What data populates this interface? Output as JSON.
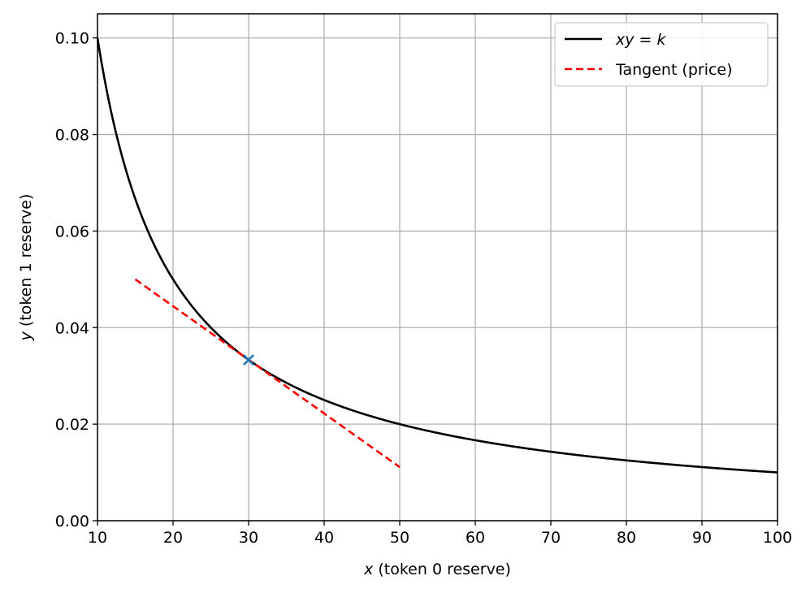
{
  "chart_data": {
    "type": "line",
    "xlabel_var": "x",
    "xlabel_rest": " (token 0 reserve)",
    "ylabel_var": "y",
    "ylabel_rest": " (token 1 reserve)",
    "xlim": [
      10,
      100
    ],
    "ylim": [
      0,
      0.105
    ],
    "x_ticks": [
      10,
      20,
      30,
      40,
      50,
      60,
      70,
      80,
      90,
      100
    ],
    "x_tick_labels": [
      "10",
      "20",
      "30",
      "40",
      "50",
      "60",
      "70",
      "80",
      "90",
      "100"
    ],
    "y_ticks": [
      0.0,
      0.02,
      0.04,
      0.06,
      0.08,
      0.1
    ],
    "y_tick_labels": [
      "0.00",
      "0.02",
      "0.04",
      "0.06",
      "0.08",
      "0.10"
    ],
    "grid": true,
    "legend_position": "top-right",
    "series": [
      {
        "name": "xy = k",
        "style": "solid",
        "color": "#000000",
        "k": 1,
        "x": [
          10,
          11,
          12,
          13,
          14,
          15,
          16,
          17,
          18,
          19,
          20,
          22,
          24,
          26,
          28,
          30,
          33,
          36,
          40,
          45,
          50,
          55,
          60,
          65,
          70,
          75,
          80,
          85,
          90,
          95,
          100
        ],
        "y": [
          0.1,
          0.0909,
          0.0833,
          0.0769,
          0.0714,
          0.0667,
          0.0625,
          0.0588,
          0.0556,
          0.0526,
          0.05,
          0.0455,
          0.0417,
          0.0385,
          0.0357,
          0.0333,
          0.0303,
          0.0278,
          0.025,
          0.0222,
          0.02,
          0.0182,
          0.0167,
          0.0154,
          0.0143,
          0.0133,
          0.0125,
          0.0118,
          0.0111,
          0.0105,
          0.01
        ]
      },
      {
        "name": "Tangent (price)",
        "style": "dashed",
        "color": "#ff0000",
        "x": [
          15,
          50
        ],
        "y": [
          0.05,
          0.0111
        ]
      }
    ],
    "marker": {
      "x": 30,
      "y": 0.0333,
      "symbol": "x",
      "color": "#1f77b4"
    }
  }
}
